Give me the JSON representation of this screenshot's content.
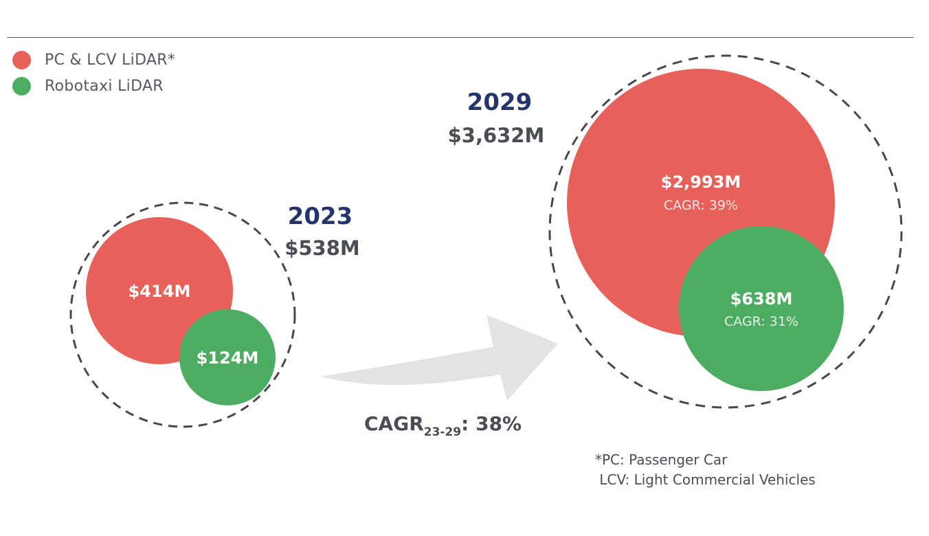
{
  "legend": {
    "items": [
      {
        "label": "PC & LCV LiDAR*",
        "color": "#e8605a"
      },
      {
        "label": "Robotaxi LiDAR",
        "color": "#4cad62"
      }
    ]
  },
  "chart_data": {
    "type": "bubble",
    "unit": "$M",
    "categories": [
      "2023",
      "2029"
    ],
    "totals": [
      538,
      3632
    ],
    "total_labels": [
      "$538M",
      "$3,632M"
    ],
    "series": [
      {
        "name": "PC & LCV LiDAR*",
        "color": "#e8605a",
        "values": [
          414,
          2993
        ],
        "value_labels": [
          "$414M",
          "$2,993M"
        ],
        "cagr_label": "CAGR: 39%"
      },
      {
        "name": "Robotaxi LiDAR",
        "color": "#4cad62",
        "values": [
          124,
          638
        ],
        "value_labels": [
          "$124M",
          "$638M"
        ],
        "cagr_label": "CAGR: 31%"
      }
    ],
    "overall_cagr": {
      "prefix": "CAGR",
      "subscript": "23-29",
      "suffix": ": 38%"
    }
  },
  "footnote": {
    "line1": "*PC: Passenger Car",
    "line2": " LCV: Light Commercial Vehicles"
  }
}
